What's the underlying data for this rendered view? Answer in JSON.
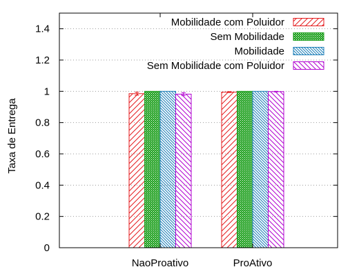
{
  "chart_data": {
    "type": "bar",
    "title": "",
    "xlabel": "",
    "ylabel": "Taxa de Entrega",
    "ylim": [
      0,
      1.5
    ],
    "yticks": [
      0,
      0.2,
      0.4,
      0.6,
      0.8,
      1,
      1.2,
      1.4
    ],
    "ytick_labels": [
      "0",
      "0.2",
      "0.4",
      "0.6",
      "0.8",
      "1",
      "1.2",
      "1.4"
    ],
    "grid": "horizontal dotted",
    "legend_position": "top-right",
    "categories": [
      "NaoProativo",
      "ProAtivo"
    ],
    "series": [
      {
        "name": "Mobilidade com Poluidor",
        "values": [
          0.985,
          0.995
        ],
        "errors": [
          0.01,
          0.003
        ],
        "color": "#e41a1c",
        "pattern": "diag-right-sparse"
      },
      {
        "name": "Sem Mobilidade",
        "values": [
          1.0,
          1.0
        ],
        "errors": [
          0,
          0
        ],
        "color": "#1a9e1a",
        "pattern": "crosshatch"
      },
      {
        "name": "Mobilidade",
        "values": [
          1.0,
          1.0
        ],
        "errors": [
          0,
          0
        ],
        "color": "#1e7fb8",
        "pattern": "diag-left-dense"
      },
      {
        "name": "Sem Mobilidade com Poluidor",
        "values": [
          0.982,
          0.998
        ],
        "errors": [
          0.01,
          0.002
        ],
        "color": "#b000d0",
        "pattern": "diag-left-sparse"
      }
    ]
  }
}
